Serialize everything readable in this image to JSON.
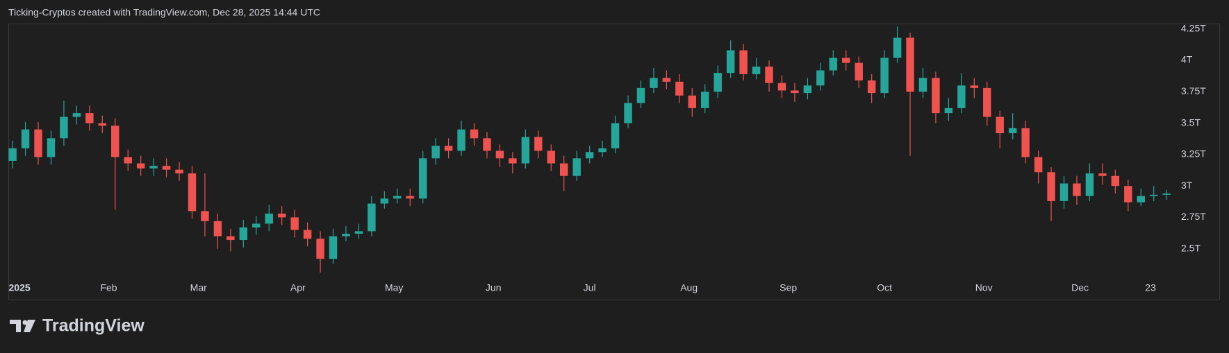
{
  "header": "Ticking-Cryptos created with TradingView.com, Dec 28, 2025 14:44 UTC",
  "brand": "TradingView",
  "chart_data": {
    "type": "candlestick",
    "up_color": "#26a69a",
    "down_color": "#ef5350",
    "x": [
      1,
      5,
      9,
      13,
      17,
      21,
      25,
      29,
      33,
      37,
      41,
      45,
      49,
      53,
      57,
      61,
      65,
      69,
      73,
      77,
      81,
      85,
      89,
      93,
      97,
      101,
      105,
      109,
      113,
      117,
      121,
      125,
      129,
      133,
      137,
      141,
      145,
      149,
      153,
      157,
      161,
      165,
      169,
      173,
      177,
      181,
      185,
      189,
      193,
      197,
      201,
      205,
      209,
      213,
      217,
      221,
      225,
      229,
      233,
      237,
      241,
      245,
      249,
      253,
      257,
      261,
      265,
      269,
      273,
      277,
      281,
      285,
      289,
      293,
      297,
      301,
      305,
      309,
      313,
      317,
      321,
      325,
      329,
      333,
      337,
      341,
      345,
      349,
      353,
      357,
      361
    ],
    "open": [
      3.2,
      3.3,
      3.45,
      3.23,
      3.38,
      3.55,
      3.58,
      3.5,
      3.48,
      3.23,
      3.18,
      3.14,
      3.16,
      3.13,
      3.1,
      2.8,
      2.72,
      2.6,
      2.57,
      2.67,
      2.7,
      2.78,
      2.75,
      2.65,
      2.58,
      2.42,
      2.6,
      2.62,
      2.64,
      2.86,
      2.9,
      2.92,
      2.9,
      3.22,
      3.32,
      3.28,
      3.45,
      3.38,
      3.28,
      3.22,
      3.18,
      3.39,
      3.28,
      3.18,
      3.08,
      3.22,
      3.27,
      3.3,
      3.5,
      3.66,
      3.78,
      3.86,
      3.83,
      3.72,
      3.62,
      3.75,
      3.9,
      4.08,
      3.89,
      3.95,
      3.82,
      3.76,
      3.74,
      3.8,
      3.92,
      4.02,
      3.98,
      3.84,
      3.74,
      4.02,
      4.18,
      3.75,
      3.86,
      3.58,
      3.62,
      3.8,
      3.78,
      3.55,
      3.42,
      3.46,
      3.23,
      3.11,
      2.88,
      3.02,
      2.92,
      3.1,
      3.08,
      3.0,
      2.87,
      2.92,
      2.93
    ],
    "high": [
      3.36,
      3.51,
      3.51,
      3.44,
      3.68,
      3.64,
      3.64,
      3.56,
      3.54,
      3.29,
      3.24,
      3.22,
      3.22,
      3.19,
      3.16,
      3.1,
      2.78,
      2.66,
      2.73,
      2.76,
      2.85,
      2.84,
      2.81,
      2.71,
      2.64,
      2.66,
      2.68,
      2.7,
      2.92,
      2.96,
      2.98,
      2.98,
      3.28,
      3.38,
      3.38,
      3.52,
      3.5,
      3.43,
      3.33,
      3.27,
      3.45,
      3.44,
      3.33,
      3.24,
      3.28,
      3.32,
      3.36,
      3.56,
      3.72,
      3.84,
      3.94,
      3.92,
      3.89,
      3.78,
      3.81,
      3.96,
      4.16,
      4.13,
      4.02,
      4.0,
      3.88,
      3.82,
      3.86,
      3.98,
      4.08,
      4.08,
      4.03,
      3.89,
      4.08,
      4.27,
      4.22,
      3.94,
      3.91,
      3.7,
      3.9,
      3.86,
      3.83,
      3.6,
      3.58,
      3.52,
      3.28,
      3.15,
      3.08,
      3.08,
      3.18,
      3.18,
      3.13,
      3.05,
      2.98,
      3.0,
      2.97
    ],
    "low": [
      3.14,
      3.24,
      3.17,
      3.17,
      3.32,
      3.49,
      3.44,
      3.42,
      2.81,
      3.12,
      3.08,
      3.08,
      3.07,
      3.04,
      2.74,
      2.6,
      2.5,
      2.48,
      2.51,
      2.61,
      2.64,
      2.69,
      2.59,
      2.52,
      2.31,
      2.38,
      2.56,
      2.58,
      2.6,
      2.82,
      2.86,
      2.84,
      2.86,
      3.17,
      3.22,
      3.24,
      3.32,
      3.22,
      3.15,
      3.1,
      3.14,
      3.22,
      3.12,
      2.96,
      3.04,
      3.18,
      3.23,
      3.26,
      3.46,
      3.62,
      3.74,
      3.77,
      3.66,
      3.55,
      3.58,
      3.7,
      3.86,
      3.84,
      3.85,
      3.75,
      3.7,
      3.67,
      3.69,
      3.76,
      3.88,
      3.92,
      3.78,
      3.66,
      3.7,
      3.98,
      3.24,
      3.7,
      3.5,
      3.52,
      3.58,
      3.7,
      3.48,
      3.3,
      3.37,
      3.18,
      3.02,
      2.72,
      2.82,
      2.85,
      2.88,
      3.01,
      2.94,
      2.8,
      2.84,
      2.88,
      2.89
    ],
    "close": [
      3.3,
      3.45,
      3.23,
      3.38,
      3.55,
      3.58,
      3.5,
      3.48,
      3.23,
      3.18,
      3.14,
      3.16,
      3.13,
      3.1,
      2.8,
      2.72,
      2.6,
      2.57,
      2.67,
      2.7,
      2.78,
      2.75,
      2.65,
      2.58,
      2.42,
      2.6,
      2.62,
      2.64,
      2.86,
      2.9,
      2.92,
      2.9,
      3.22,
      3.32,
      3.28,
      3.45,
      3.38,
      3.28,
      3.22,
      3.18,
      3.39,
      3.28,
      3.18,
      3.08,
      3.22,
      3.27,
      3.3,
      3.5,
      3.66,
      3.78,
      3.86,
      3.83,
      3.72,
      3.62,
      3.75,
      3.9,
      4.08,
      3.89,
      3.95,
      3.82,
      3.76,
      3.74,
      3.8,
      3.92,
      4.02,
      3.98,
      3.84,
      3.74,
      4.02,
      4.18,
      3.75,
      3.86,
      3.58,
      3.62,
      3.8,
      3.78,
      3.55,
      3.42,
      3.46,
      3.23,
      3.11,
      2.88,
      3.02,
      2.92,
      3.1,
      3.08,
      3.0,
      2.87,
      2.92,
      2.93,
      2.94
    ],
    "xlim": [
      0,
      364
    ],
    "xticks": [
      {
        "value": 0,
        "label": "2025"
      },
      {
        "value": 31,
        "label": "Feb"
      },
      {
        "value": 59,
        "label": "Mar"
      },
      {
        "value": 90,
        "label": "Apr"
      },
      {
        "value": 120,
        "label": "May"
      },
      {
        "value": 151,
        "label": "Jun"
      },
      {
        "value": 181,
        "label": "Jul"
      },
      {
        "value": 212,
        "label": "Aug"
      },
      {
        "value": 243,
        "label": "Sep"
      },
      {
        "value": 273,
        "label": "Oct"
      },
      {
        "value": 304,
        "label": "Nov"
      },
      {
        "value": 334,
        "label": "Dec"
      },
      {
        "value": 356,
        "label": "23"
      }
    ],
    "ylim": [
      2.27,
      4.29
    ],
    "yticks": [
      {
        "value": 2.5,
        "label": "2.5T"
      },
      {
        "value": 2.75,
        "label": "2.75T"
      },
      {
        "value": 3,
        "label": "3T"
      },
      {
        "value": 3.25,
        "label": "3.25T"
      },
      {
        "value": 3.5,
        "label": "3.5T"
      },
      {
        "value": 3.75,
        "label": "3.75T"
      },
      {
        "value": 4,
        "label": "4T"
      },
      {
        "value": 4.25,
        "label": "4.25T"
      }
    ]
  }
}
